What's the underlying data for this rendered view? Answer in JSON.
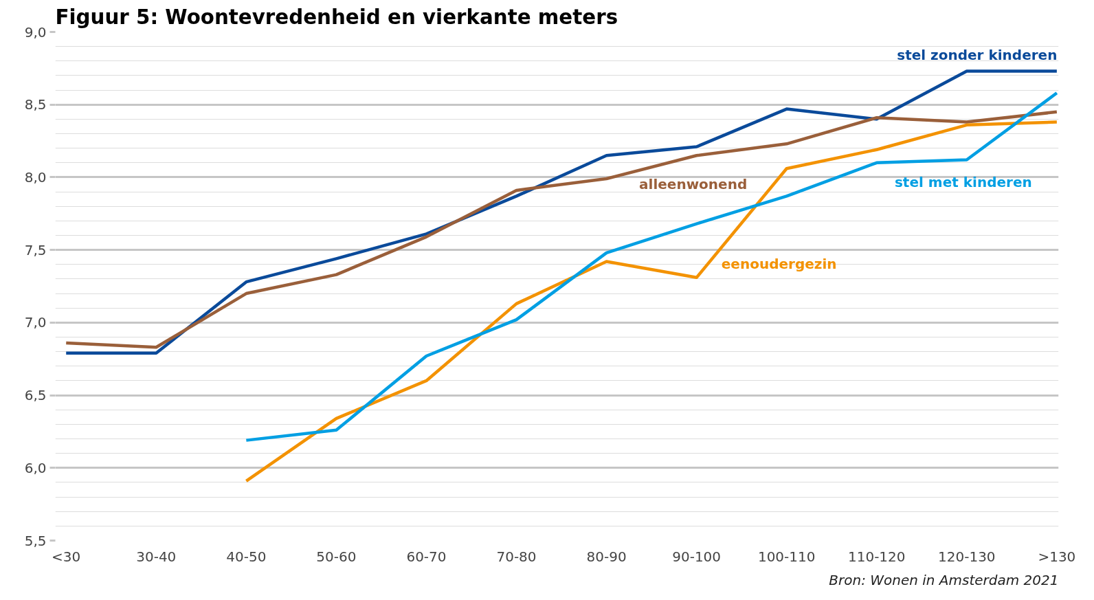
{
  "chart_data": {
    "type": "line",
    "title": "Figuur 5: Woontevredenheid en vierkante meters",
    "categories": [
      "<30",
      "30-40",
      "40-50",
      "50-60",
      "60-70",
      "70-80",
      "80-90",
      "90-100",
      "100-110",
      "110-120",
      "120-130",
      ">130"
    ],
    "series": [
      {
        "name": "stel zonder kinderen",
        "color": "#0a4a9a",
        "values": [
          6.79,
          6.79,
          7.28,
          7.44,
          7.61,
          7.87,
          8.15,
          8.21,
          8.47,
          8.4,
          8.73,
          8.73
        ]
      },
      {
        "name": "alleenwonend",
        "color": "#9a5f3a",
        "values": [
          6.86,
          6.83,
          7.2,
          7.33,
          7.59,
          7.91,
          7.99,
          8.15,
          8.23,
          8.41,
          8.38,
          8.45
        ]
      },
      {
        "name": "eenoudergezin",
        "color": "#f39200",
        "values": [
          null,
          null,
          5.91,
          6.34,
          6.6,
          7.13,
          7.42,
          7.31,
          8.06,
          8.19,
          8.36,
          8.38
        ]
      },
      {
        "name": "stel met kinderen",
        "color": "#009fe3",
        "values": [
          null,
          null,
          6.19,
          6.26,
          6.77,
          7.02,
          7.48,
          7.68,
          7.87,
          8.1,
          8.12,
          8.58
        ]
      }
    ],
    "ylim": [
      5.5,
      9.0
    ],
    "yticks": [
      {
        "value": 5.5,
        "label": "5,5"
      },
      {
        "value": 6.0,
        "label": "6,0"
      },
      {
        "value": 6.5,
        "label": "6,5"
      },
      {
        "value": 7.0,
        "label": "7,0"
      },
      {
        "value": 7.5,
        "label": "7,5"
      },
      {
        "value": 8.0,
        "label": "8,0"
      },
      {
        "value": 8.5,
        "label": "8,5"
      },
      {
        "value": 9.0,
        "label": "9,0"
      }
    ],
    "grid": "y",
    "legend": false,
    "annotations": [
      "Bron: Wonen in Amsterdam 2021"
    ]
  }
}
